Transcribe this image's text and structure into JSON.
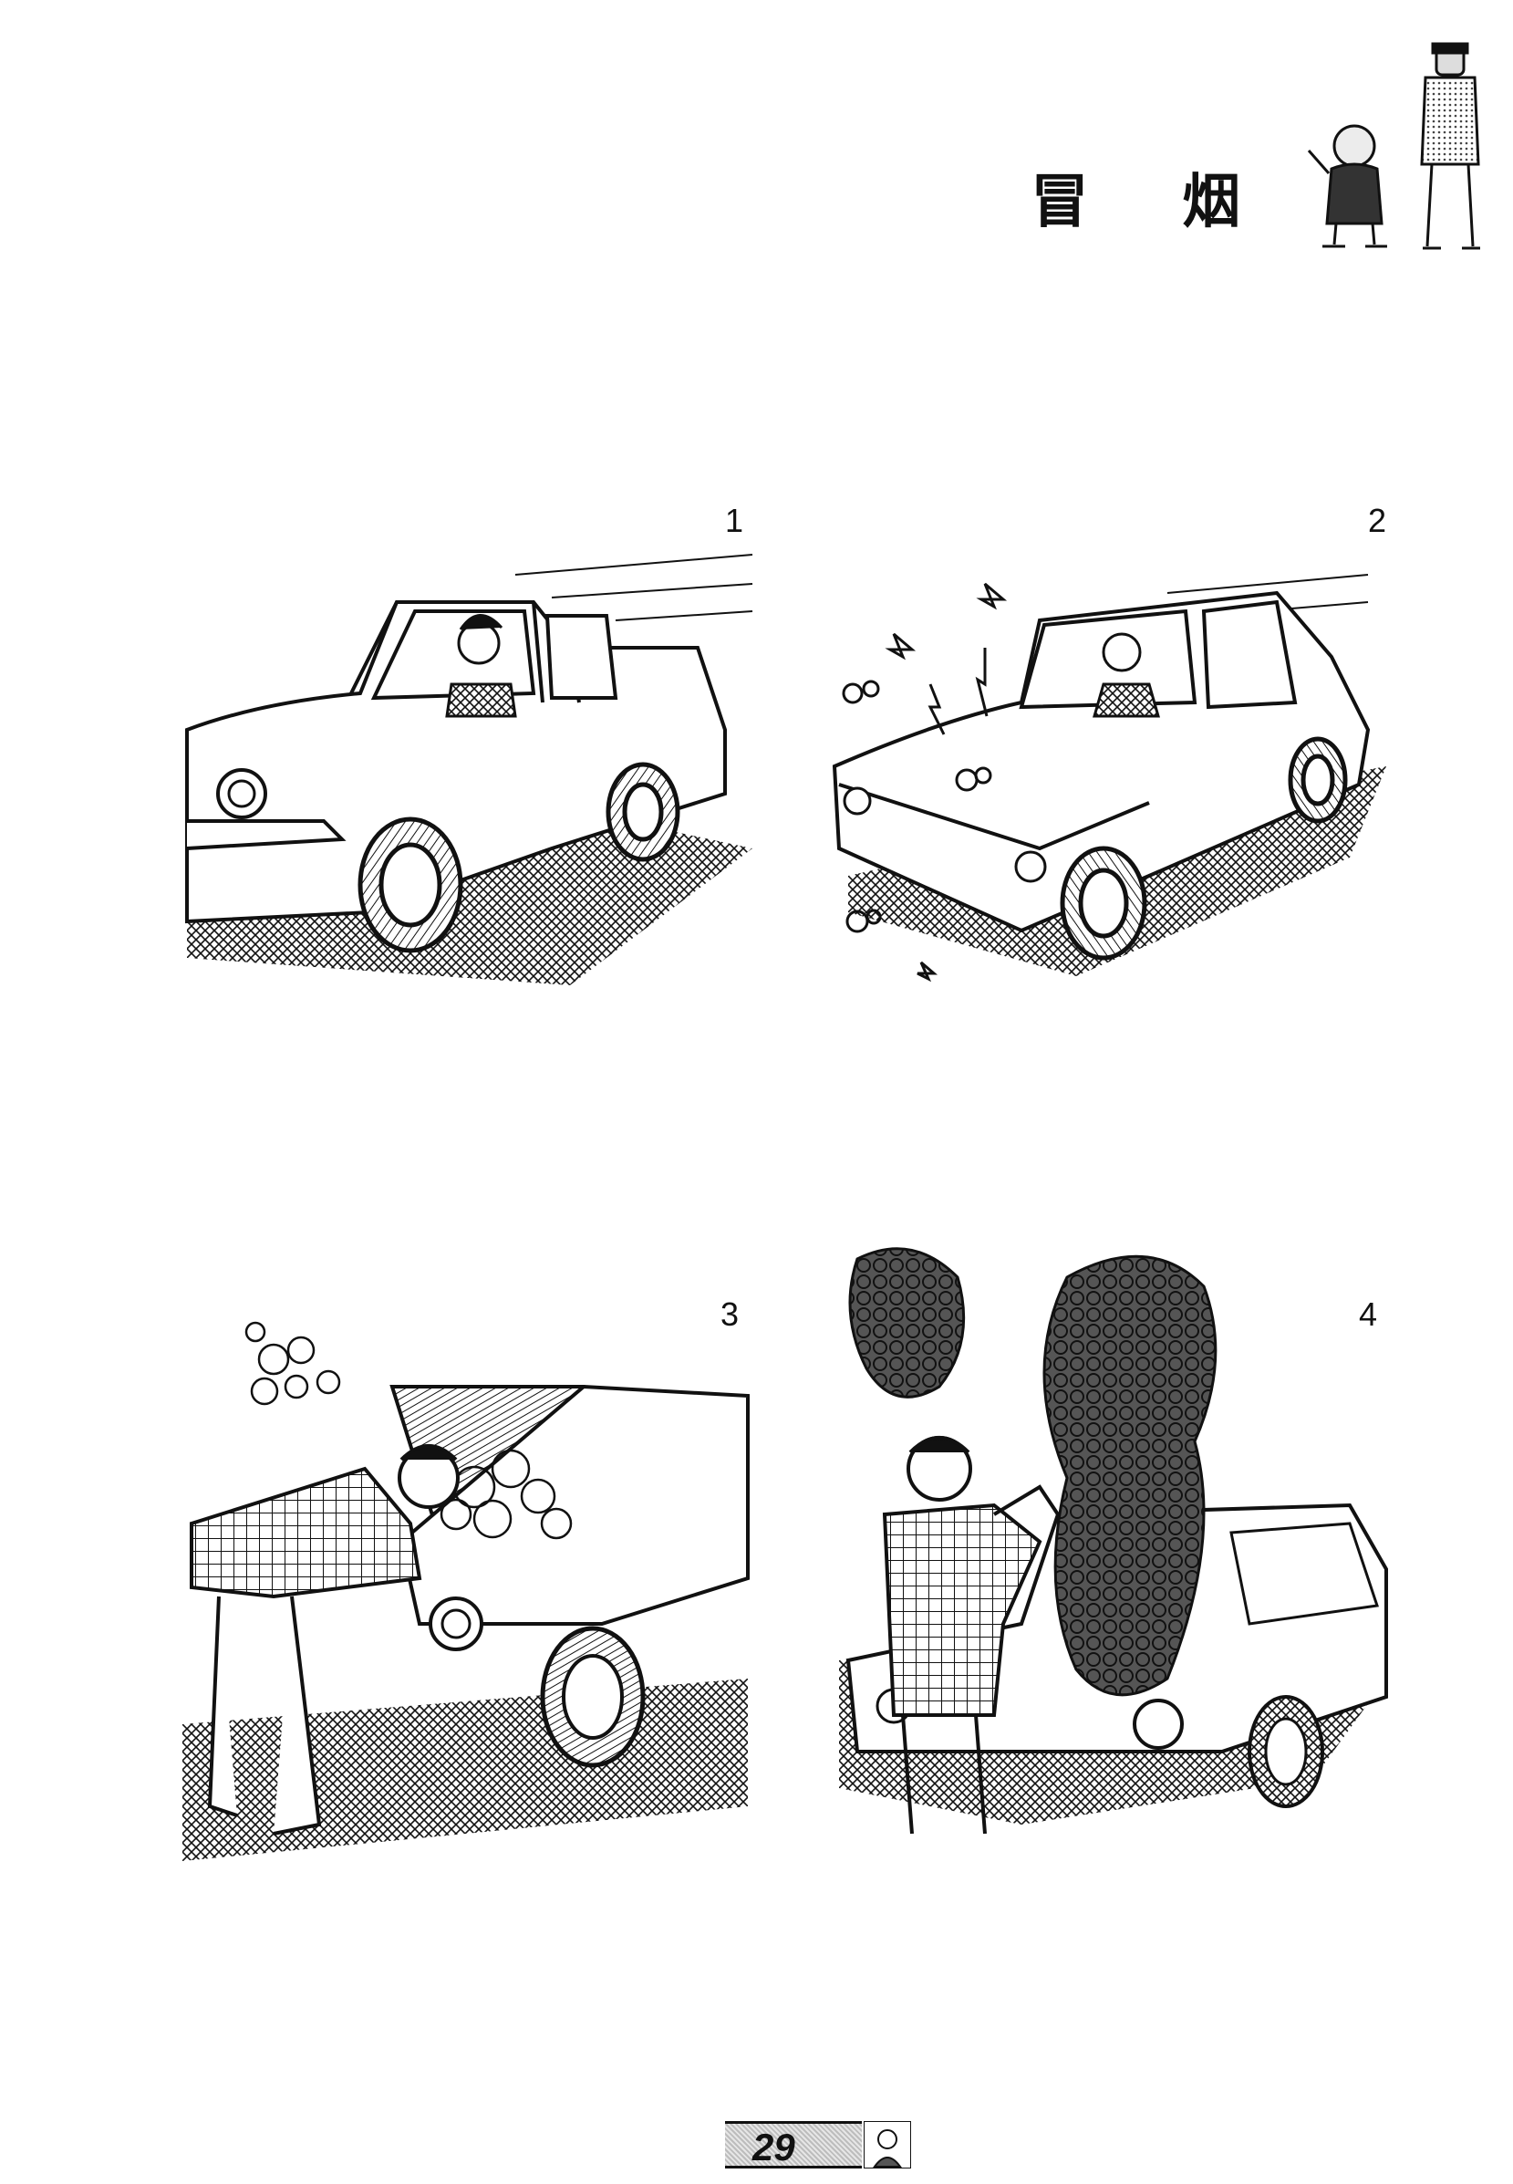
{
  "title": "冒 烟",
  "panels": [
    {
      "number": "1"
    },
    {
      "number": "2"
    },
    {
      "number": "3"
    },
    {
      "number": "4"
    }
  ],
  "footer": {
    "page_number": "29"
  },
  "colors": {
    "ink": "#111111",
    "paper": "#ffffff",
    "footer_gray": "#bdbdbd"
  },
  "icons": {
    "header": "cartoon-characters-icon",
    "footer": "cartoon-face-icon"
  }
}
